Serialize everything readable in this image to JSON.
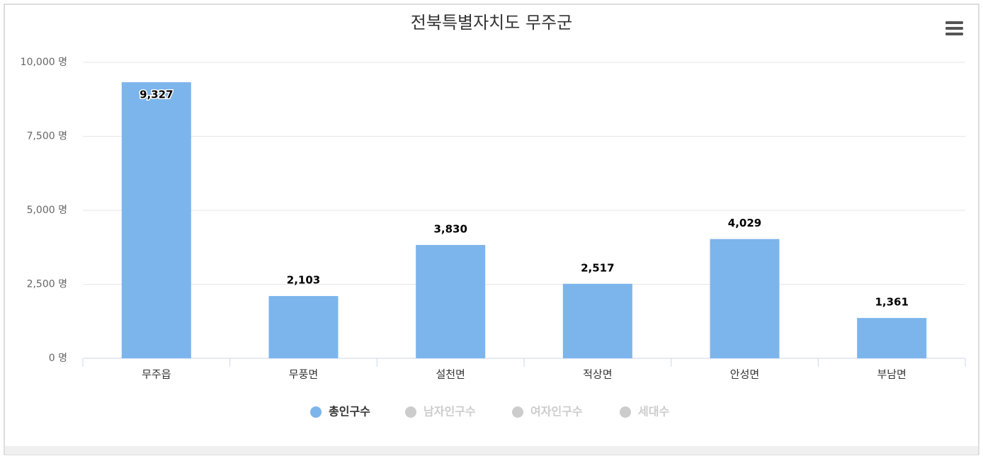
{
  "chart_data": {
    "type": "bar",
    "title": "전북특별자치도 무주군",
    "categories": [
      "무주읍",
      "무풍면",
      "설천면",
      "적상면",
      "안성면",
      "부남면"
    ],
    "series": [
      {
        "name": "총인구수",
        "color": "#7cb5ec",
        "visible": true,
        "values": [
          9327,
          2103,
          3830,
          2517,
          4029,
          1361
        ],
        "value_labels": [
          "9,327",
          "2,103",
          "3,830",
          "2,517",
          "4,029",
          "1,361"
        ]
      },
      {
        "name": "남자인구수",
        "color": "#cccccc",
        "visible": false
      },
      {
        "name": "여자인구수",
        "color": "#cccccc",
        "visible": false
      },
      {
        "name": "세대수",
        "color": "#cccccc",
        "visible": false
      }
    ],
    "ylim": [
      0,
      10000
    ],
    "yticks": [
      {
        "value": 0,
        "label": "0 명"
      },
      {
        "value": 2500,
        "label": "2,500 명"
      },
      {
        "value": 5000,
        "label": "5,000 명"
      },
      {
        "value": 7500,
        "label": "7,500 명"
      },
      {
        "value": 10000,
        "label": "10,000 명"
      }
    ],
    "grid": true,
    "legend": "bottom"
  }
}
